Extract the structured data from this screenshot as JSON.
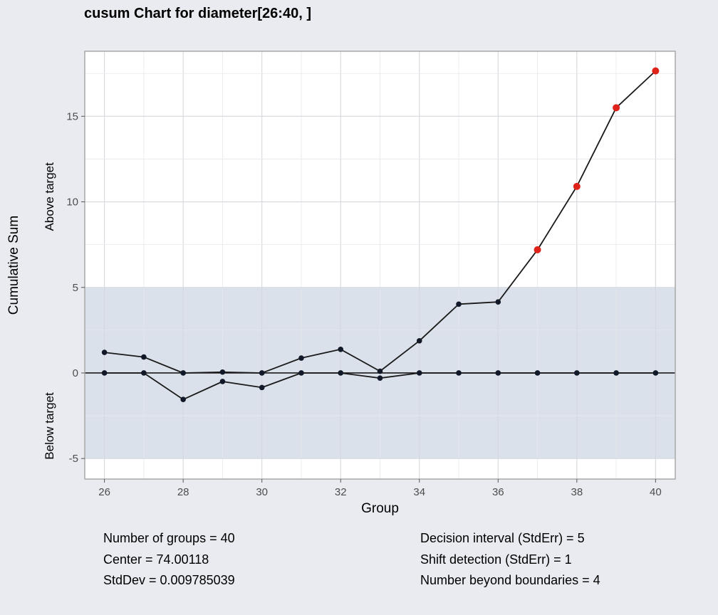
{
  "title": "cusum Chart for diameter[26:40, ]",
  "stats_left": [
    "Number of groups = 40",
    "Center = 74.00118",
    "StdDev = 0.009785039"
  ],
  "stats_right": [
    "Decision interval (StdErr) = 5",
    "Shift detection (StdErr) = 1",
    "Number beyond boundaries = 4"
  ],
  "colors": {
    "background": "#E9EBF0",
    "panel": "#FFFFFF",
    "decision_band": "#DBE1EA",
    "line": "#1A1A1A",
    "point": "#111827",
    "violation": "#E0231A"
  },
  "chart_data": {
    "type": "line",
    "xlabel": "Group",
    "ylabel": "Cumulative Sum",
    "ylabel_upper": "Above target",
    "ylabel_lower": "Below target",
    "xlim": [
      25.5,
      40.5
    ],
    "ylim": [
      -6.2,
      18.8
    ],
    "x_ticks": [
      26,
      28,
      30,
      32,
      34,
      36,
      38,
      40
    ],
    "y_ticks": [
      -5,
      0,
      5,
      10,
      15
    ],
    "decision_interval": [
      -5,
      5
    ],
    "center_line": 0,
    "x": [
      26,
      27,
      28,
      29,
      30,
      31,
      32,
      33,
      34,
      35,
      36,
      37,
      38,
      39,
      40
    ],
    "series": [
      {
        "values": [
          1.2,
          0.93,
          0.0,
          0.05,
          0.0,
          0.87,
          1.38,
          0.1,
          1.88,
          4.02,
          4.15,
          7.2,
          10.9,
          15.5,
          17.65
        ],
        "beyond": [
          false,
          false,
          false,
          false,
          false,
          false,
          false,
          false,
          false,
          false,
          false,
          true,
          true,
          true,
          true
        ]
      },
      {
        "values": [
          0.0,
          0.0,
          -1.55,
          -0.5,
          -0.85,
          0.0,
          0.0,
          -0.3,
          0.0,
          0.0,
          0.0,
          0.0,
          0.0,
          0.0,
          0.0
        ],
        "beyond": [
          false,
          false,
          false,
          false,
          false,
          false,
          false,
          false,
          false,
          false,
          false,
          false,
          false,
          false,
          false
        ]
      }
    ]
  }
}
